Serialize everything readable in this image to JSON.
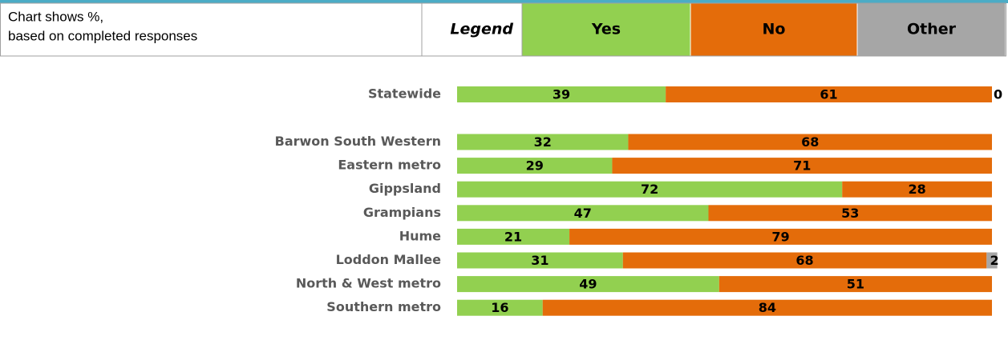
{
  "chart_data": {
    "type": "stacked-barh",
    "note": [
      "Chart shows %,",
      "based on completed responses"
    ],
    "legend_title": "Legend",
    "categories": [
      "Statewide",
      "Barwon South Western",
      "Eastern metro",
      "Gippsland",
      "Grampians",
      "Hume",
      "Loddon Mallee",
      "North & West metro",
      "Southern metro"
    ],
    "series": [
      {
        "name": "Yes",
        "color": "#92d050",
        "values": [
          39,
          32,
          29,
          72,
          47,
          21,
          31,
          49,
          16
        ]
      },
      {
        "name": "No",
        "color": "#e46c0a",
        "values": [
          61,
          68,
          71,
          28,
          53,
          79,
          68,
          51,
          84
        ]
      },
      {
        "name": "Other",
        "color": "#a6a6a6",
        "values": [
          0,
          null,
          null,
          null,
          null,
          null,
          2,
          null,
          null
        ]
      }
    ],
    "xlim": [
      0,
      100
    ]
  }
}
